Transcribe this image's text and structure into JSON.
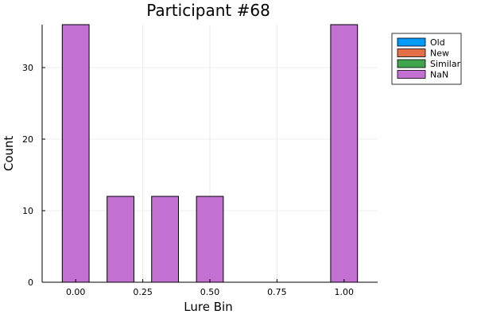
{
  "chart_data": {
    "type": "bar",
    "title": "Participant #68",
    "xlabel": "Lure Bin",
    "ylabel": "Count",
    "xlim": [
      -0.125,
      1.125
    ],
    "ylim": [
      0,
      36
    ],
    "grid": true,
    "legend_position": "top-right",
    "x_ticks": [
      0.0,
      0.25,
      0.5,
      0.75,
      1.0
    ],
    "x_tick_labels": [
      "0.00",
      "0.25",
      "0.50",
      "0.75",
      "1.00"
    ],
    "y_ticks": [
      0,
      10,
      20,
      30
    ],
    "y_tick_labels": [
      "0",
      "10",
      "20",
      "30"
    ],
    "bar_width": 0.1,
    "series": [
      {
        "name": "Old",
        "color": "#009AFA",
        "x": [],
        "values": []
      },
      {
        "name": "New",
        "color": "#E36F47",
        "x": [],
        "values": []
      },
      {
        "name": "Similar",
        "color": "#3EA44E",
        "x": [],
        "values": []
      },
      {
        "name": "NaN",
        "color": "#C271D2",
        "x": [
          0.0,
          0.167,
          0.333,
          0.5,
          1.0
        ],
        "values": [
          36,
          12,
          12,
          12,
          36
        ]
      }
    ]
  }
}
